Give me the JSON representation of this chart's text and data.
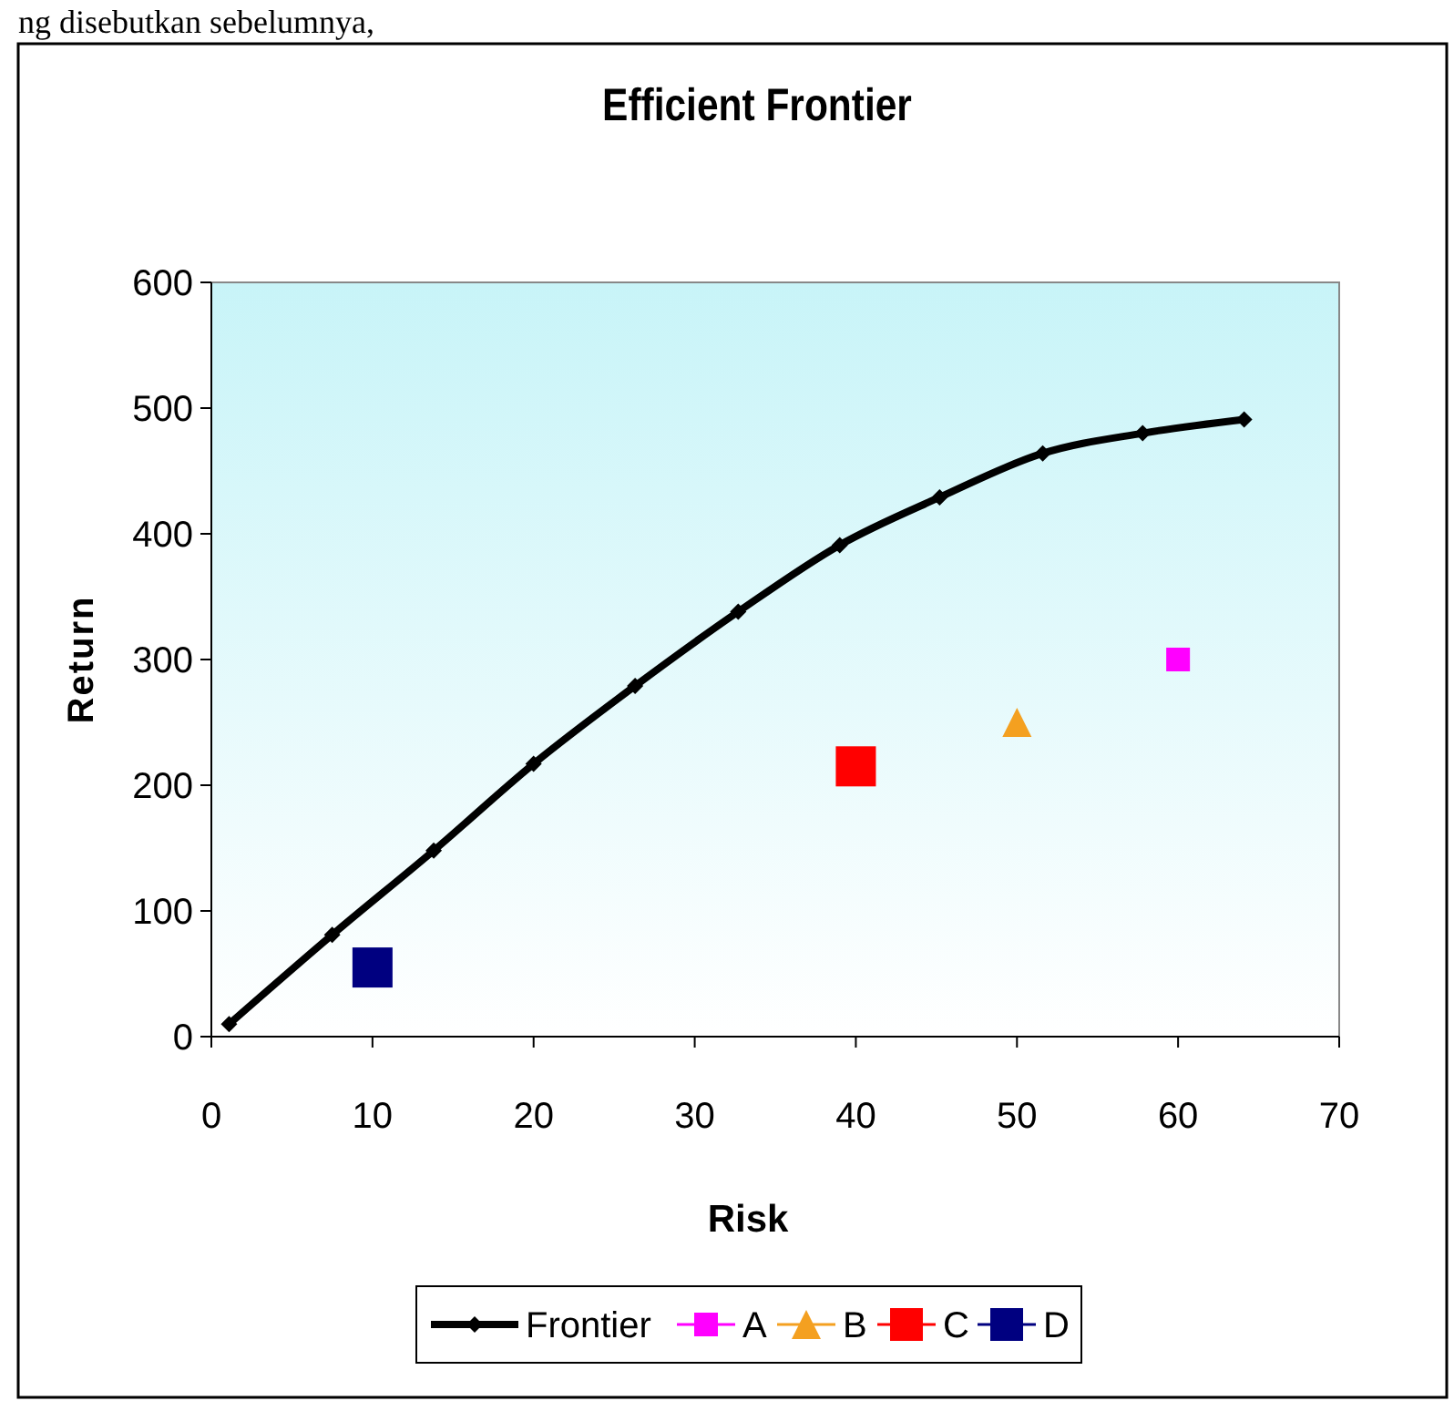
{
  "chart_data": {
    "type": "line",
    "title": "Efficient Frontier",
    "xlabel": "Risk",
    "ylabel": "Return",
    "annotations": [
      "ng disebutkan sebelumnya,"
    ],
    "xlim": [
      0,
      70
    ],
    "xticks": [
      0,
      10,
      20,
      30,
      40,
      50,
      60,
      70
    ],
    "ylim": [
      0,
      600
    ],
    "yticks": [
      0,
      100,
      200,
      300,
      400,
      500,
      600
    ],
    "grid": false,
    "legend": "bottom",
    "series": [
      {
        "name": "Frontier",
        "color": "#000000",
        "marker": "diamond",
        "line_style": "solid",
        "x": [
          1.1,
          7.5,
          13.8,
          20,
          26.3,
          32.7,
          39,
          45.2,
          51.6,
          57.8,
          64.1
        ],
        "values": [
          10,
          81,
          148,
          217,
          279,
          338,
          391,
          429,
          464,
          480,
          491
        ]
      },
      {
        "name": "A",
        "type": "scatter",
        "color": "#ff00ff",
        "marker": "square",
        "x": [
          60
        ],
        "values": [
          300
        ]
      },
      {
        "name": "B",
        "type": "scatter",
        "color": "#f4a020",
        "marker": "triangle",
        "x": [
          50
        ],
        "values": [
          250
        ]
      },
      {
        "name": "C",
        "type": "scatter",
        "color": "#ff0000",
        "marker": "square",
        "x": [
          40
        ],
        "values": [
          215
        ]
      },
      {
        "name": "D",
        "type": "scatter",
        "color": "#000080",
        "marker": "square",
        "x": [
          10
        ],
        "values": [
          55
        ]
      }
    ]
  }
}
